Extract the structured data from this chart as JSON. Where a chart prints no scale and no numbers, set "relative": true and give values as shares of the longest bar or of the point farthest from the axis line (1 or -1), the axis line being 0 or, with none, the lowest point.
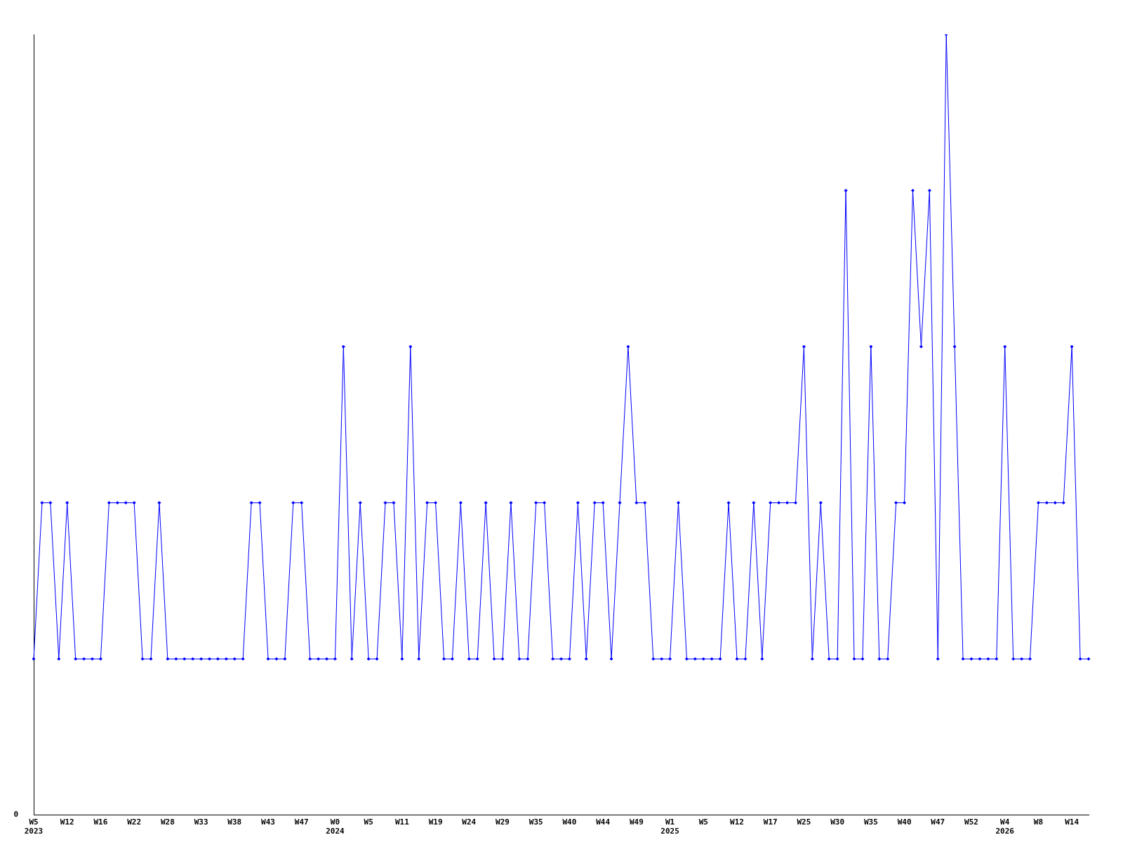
{
  "chart_data": {
    "type": "line",
    "relative": true,
    "categories": [
      "W5\n2023",
      null,
      null,
      null,
      "W12",
      null,
      null,
      null,
      "W16",
      null,
      null,
      null,
      "W22",
      null,
      null,
      null,
      "W28",
      null,
      null,
      null,
      "W33",
      null,
      null,
      null,
      "W38",
      null,
      null,
      null,
      "W43",
      null,
      null,
      null,
      "W47",
      null,
      null,
      null,
      "W0\n2024",
      null,
      null,
      null,
      "W5",
      null,
      null,
      null,
      "W11",
      null,
      null,
      null,
      "W19",
      null,
      null,
      null,
      "W24",
      null,
      null,
      null,
      "W29",
      null,
      null,
      null,
      "W35",
      null,
      null,
      null,
      "W40",
      null,
      null,
      null,
      "W44",
      null,
      null,
      null,
      "W49",
      null,
      null,
      null,
      "W1\n2025",
      null,
      null,
      null,
      "W5",
      null,
      null,
      null,
      "W12",
      null,
      null,
      null,
      "W17",
      null,
      null,
      null,
      "W25",
      null,
      null,
      null,
      "W30",
      null,
      null,
      null,
      "W35",
      null,
      null,
      null,
      "W40",
      null,
      null,
      null,
      "W47",
      null,
      null,
      null,
      "W52",
      null,
      null,
      null,
      "W4\n2026",
      null,
      null,
      null,
      "W8",
      null,
      null,
      null,
      "W14",
      null,
      null
    ],
    "series": [
      {
        "color": "#0000ff",
        "values": [
          0.2,
          0.4,
          0.4,
          0.2,
          0.4,
          0.2,
          0.2,
          0.2,
          0.2,
          0.4,
          0.4,
          0.4,
          0.4,
          0.2,
          0.2,
          0.4,
          0.2,
          0.2,
          0.2,
          0.2,
          0.2,
          0.2,
          0.2,
          0.2,
          0.2,
          0.2,
          0.4,
          0.4,
          0.2,
          0.2,
          0.2,
          0.4,
          0.4,
          0.2,
          0.2,
          0.2,
          0.2,
          0.6,
          0.2,
          0.4,
          0.2,
          0.2,
          0.4,
          0.4,
          0.2,
          0.6,
          0.2,
          0.4,
          0.4,
          0.2,
          0.2,
          0.4,
          0.2,
          0.2,
          0.4,
          0.2,
          0.2,
          0.4,
          0.2,
          0.2,
          0.4,
          0.4,
          0.2,
          0.2,
          0.2,
          0.4,
          0.2,
          0.4,
          0.4,
          0.2,
          0.4,
          0.6,
          0.4,
          0.4,
          0.2,
          0.2,
          0.2,
          0.4,
          0.2,
          0.2,
          0.2,
          0.2,
          0.2,
          0.4,
          0.2,
          0.2,
          0.4,
          0.2,
          0.4,
          0.4,
          0.4,
          0.4,
          0.6,
          0.2,
          0.4,
          0.2,
          0.2,
          0.8,
          0.2,
          0.2,
          0.6,
          0.2,
          0.2,
          0.4,
          0.4,
          0.8,
          0.6,
          0.8,
          0.2,
          1,
          0.6,
          0.2,
          0.2,
          0.2,
          0.2,
          0.2,
          0.6,
          0.2,
          0.2,
          0.2,
          0.4,
          0.4,
          0.4,
          0.4,
          0.6,
          0.2,
          0.2
        ]
      }
    ],
    "annotations": [
      "0"
    ],
    "marker": "diamond",
    "legend": false,
    "grid": false
  }
}
